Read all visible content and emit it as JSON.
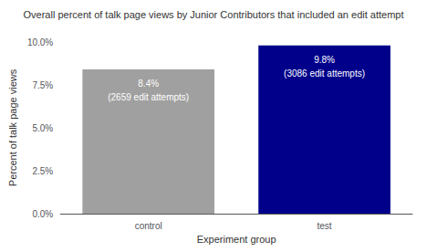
{
  "chart_data": {
    "type": "bar",
    "title": "Overall percent of talk page views by Junior Contributors that included an edit attempt",
    "xlabel": "Experiment group",
    "ylabel": "Percent of talk page views",
    "categories": [
      "control",
      "test"
    ],
    "values": [
      8.4,
      9.8
    ],
    "colors": [
      "#a0a0a0",
      "#00008b"
    ],
    "annotations": [
      "8.4%\n(2659 edit attempts)",
      "9.8%\n(3086 edit attempts)"
    ],
    "ylim": [
      0,
      10.0
    ],
    "yticks": [
      {
        "value": 0.0,
        "label": "0.0%"
      },
      {
        "value": 2.5,
        "label": "2.5%"
      },
      {
        "value": 5.0,
        "label": "5.0%"
      },
      {
        "value": 7.5,
        "label": "7.5%"
      },
      {
        "value": 10.0,
        "label": "10.0%"
      }
    ],
    "grid": false
  }
}
